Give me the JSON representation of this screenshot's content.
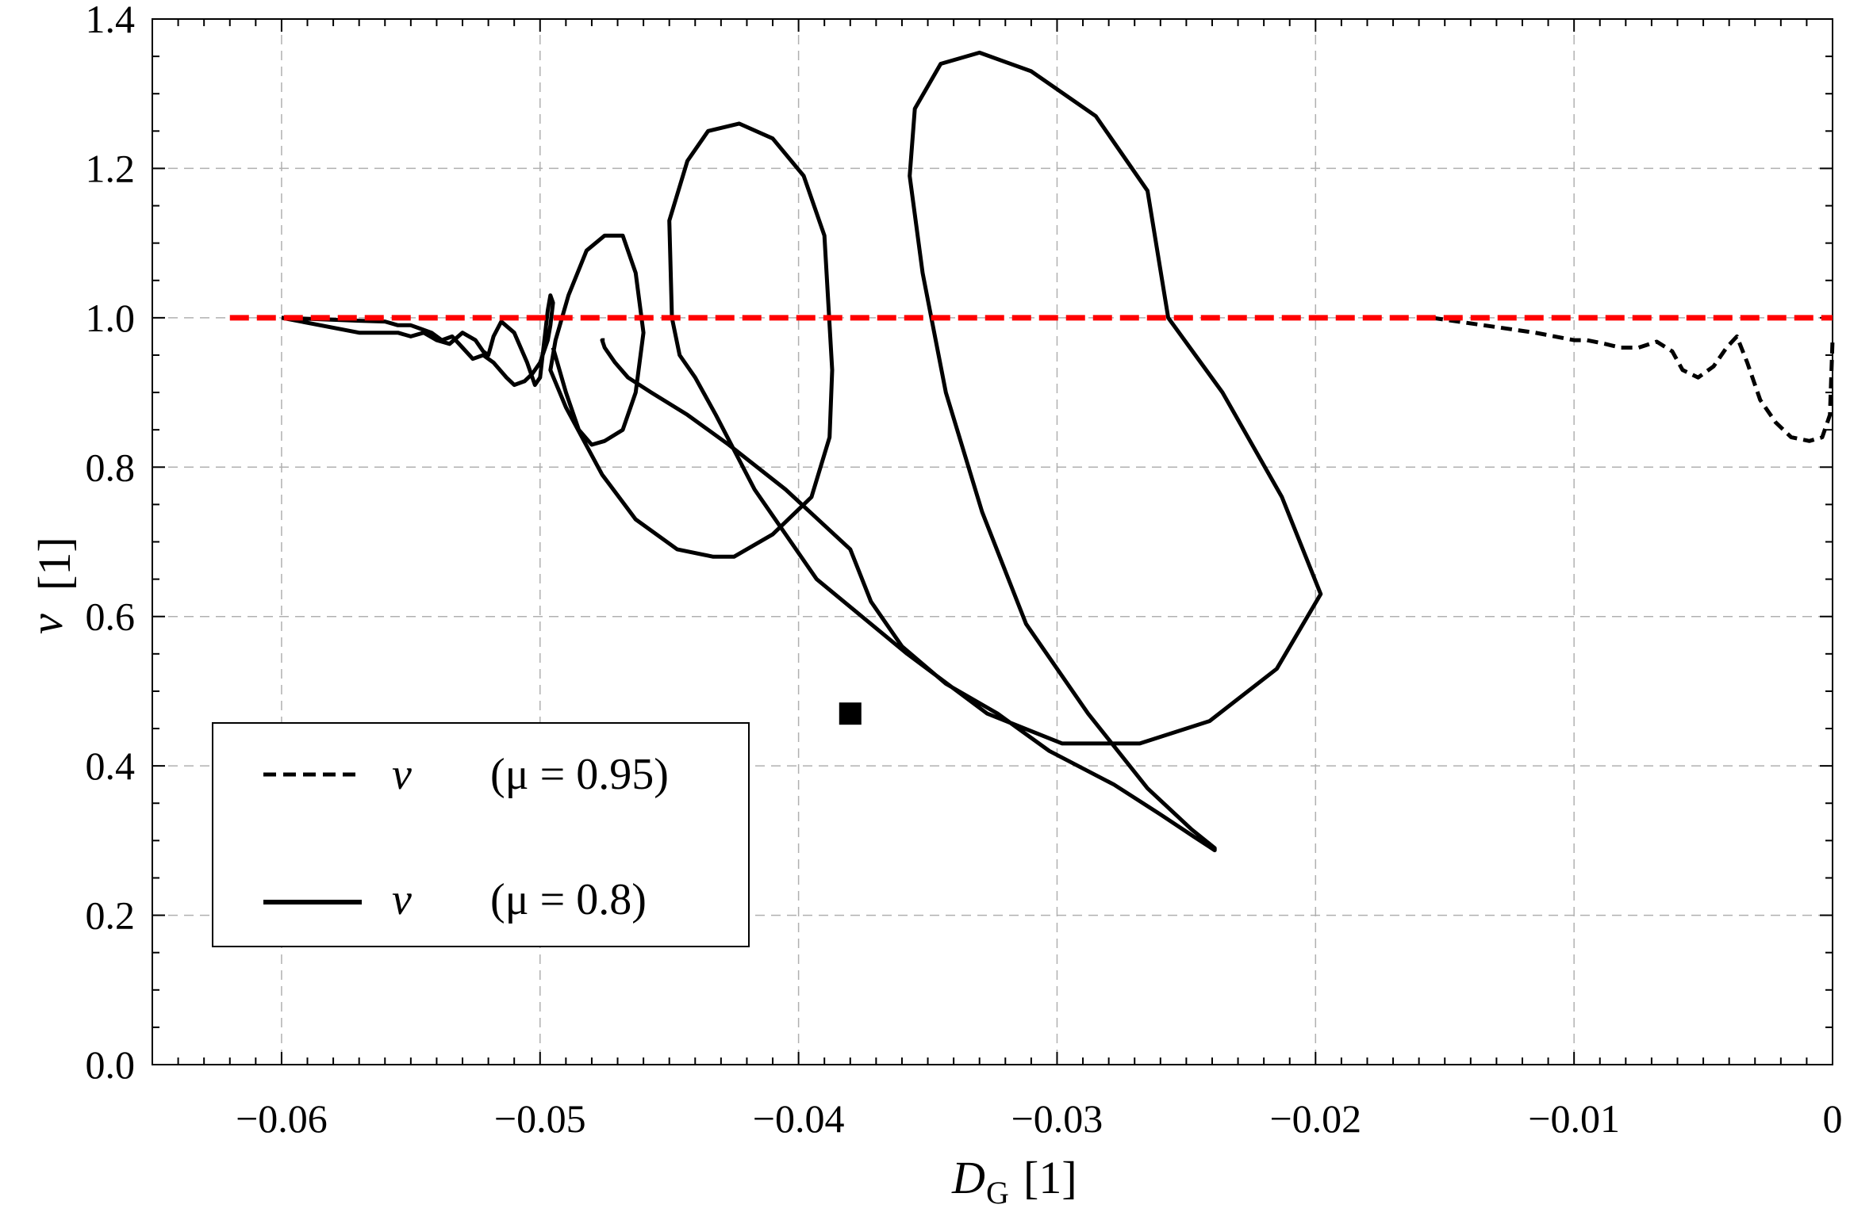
{
  "chart_data": {
    "type": "line",
    "title": "",
    "xlabel": "D",
    "xlabel_sub": "G",
    "xlabel_unit": "[1]",
    "ylabel": "ν",
    "ylabel_unit": "[1]",
    "xlim": [
      -0.065,
      0.0
    ],
    "ylim": [
      0.0,
      1.4
    ],
    "x_ticks": [
      -0.06,
      -0.05,
      -0.04,
      -0.03,
      -0.02,
      -0.01,
      0
    ],
    "x_tick_labels": [
      "−0.06",
      "−0.05",
      "−0.04",
      "−0.03",
      "−0.02",
      "−0.01",
      "0"
    ],
    "y_ticks": [
      0.0,
      0.2,
      0.4,
      0.6,
      0.8,
      1.0,
      1.2,
      1.4
    ],
    "y_tick_labels": [
      "0.0",
      "0.2",
      "0.4",
      "0.6",
      "0.8",
      "1.0",
      "1.2",
      "1.4"
    ],
    "grid": true,
    "legend_position": "bottom-left",
    "series": [
      {
        "name": "ν (μ = 0.95)",
        "legend_symbol": "ν",
        "legend_param": "(μ = 0.95)",
        "style": "dashed",
        "color": "#000000",
        "x": [
          -0.0155,
          -0.0135,
          -0.0115,
          -0.01,
          -0.0095,
          -0.0088,
          -0.0082,
          -0.0075,
          -0.0068,
          -0.0062,
          -0.0058,
          -0.0052,
          -0.0046,
          -0.0041,
          -0.0037,
          -0.0033,
          -0.0028,
          -0.0022,
          -0.0016,
          -0.0009,
          -0.0004,
          -0.0001,
          0.0
        ],
        "y": [
          1.0,
          0.99,
          0.98,
          0.97,
          0.97,
          0.965,
          0.96,
          0.96,
          0.968,
          0.955,
          0.93,
          0.92,
          0.935,
          0.96,
          0.975,
          0.94,
          0.89,
          0.86,
          0.84,
          0.835,
          0.84,
          0.87,
          0.97
        ]
      },
      {
        "name": "ν (μ = 0.8)",
        "legend_symbol": "ν",
        "legend_param": "(μ = 0.8)",
        "style": "solid",
        "color": "#000000",
        "x": [
          -0.06,
          -0.057,
          -0.0555,
          -0.055,
          -0.0545,
          -0.054,
          -0.0535,
          -0.053,
          -0.0525,
          -0.0522,
          -0.052,
          -0.0518,
          -0.0515,
          -0.051,
          -0.0505,
          -0.0502,
          -0.05,
          -0.0499,
          -0.0498,
          -0.0497,
          -0.0496,
          -0.0495,
          -0.0496,
          -0.0497,
          -0.0498,
          -0.0499,
          -0.05,
          -0.0503,
          -0.0506,
          -0.051,
          -0.0513,
          -0.0518,
          -0.0522,
          -0.0526,
          -0.053,
          -0.0534,
          -0.0538,
          -0.0542,
          -0.0546,
          -0.055,
          -0.0555,
          -0.056,
          -0.057,
          -0.0585,
          -0.06
        ],
        "y": [
          1.0,
          0.98,
          0.98,
          0.975,
          0.98,
          0.97,
          0.965,
          0.98,
          0.97,
          0.955,
          0.95,
          0.975,
          0.995,
          0.98,
          0.94,
          0.91,
          0.92,
          0.95,
          0.98,
          1.01,
          1.03,
          1.02,
          0.99,
          0.97,
          0.96,
          0.95,
          0.94,
          0.925,
          0.915,
          0.91,
          0.92,
          0.94,
          0.95,
          0.945,
          0.96,
          0.975,
          0.97,
          0.98,
          0.985,
          0.99,
          0.99,
          0.995,
          0.996,
          0.998,
          1.0
        ]
      }
    ],
    "mu08_main_path": {
      "x": [
        -0.0495,
        -0.049,
        -0.0485,
        -0.048,
        -0.0475,
        -0.0468,
        -0.0463,
        -0.046,
        -0.0463,
        -0.0468,
        -0.0475,
        -0.0482,
        -0.0489,
        -0.0494,
        -0.0496,
        -0.049,
        -0.0476,
        -0.0463,
        -0.0447,
        -0.0433,
        -0.0425,
        -0.041,
        -0.0395,
        -0.0388,
        -0.0387,
        -0.039,
        -0.0398,
        -0.041,
        -0.0423,
        -0.0435,
        -0.0443,
        -0.045,
        -0.0449,
        -0.0446,
        -0.044,
        -0.0432,
        -0.0417,
        -0.0393,
        -0.0358,
        -0.0327,
        -0.0298,
        -0.0268,
        -0.0241,
        -0.0215,
        -0.0198,
        -0.0213,
        -0.0236,
        -0.0257,
        -0.0265,
        -0.0285,
        -0.031,
        -0.033,
        -0.0345,
        -0.0355,
        -0.0357,
        -0.0352,
        -0.0343,
        -0.0329,
        -0.0312,
        -0.0288,
        -0.0265,
        -0.0248,
        -0.0239,
        -0.0239,
        -0.0247,
        -0.026,
        -0.0278,
        -0.0303,
        -0.0323,
        -0.0343,
        -0.036,
        -0.0372,
        -0.038,
        -0.0405,
        -0.0427,
        -0.0443,
        -0.0457,
        -0.0466,
        -0.0471,
        -0.0475,
        -0.0476,
        -0.0475
      ],
      "y": [
        0.96,
        0.9,
        0.85,
        0.83,
        0.835,
        0.85,
        0.9,
        0.98,
        1.06,
        1.11,
        1.11,
        1.09,
        1.03,
        0.97,
        0.93,
        0.88,
        0.79,
        0.73,
        0.69,
        0.68,
        0.68,
        0.71,
        0.76,
        0.84,
        0.93,
        1.11,
        1.19,
        1.24,
        1.26,
        1.25,
        1.21,
        1.13,
        1.0,
        0.95,
        0.92,
        0.87,
        0.77,
        0.65,
        0.55,
        0.47,
        0.43,
        0.43,
        0.46,
        0.53,
        0.63,
        0.76,
        0.9,
        1.0,
        1.17,
        1.27,
        1.33,
        1.355,
        1.34,
        1.28,
        1.19,
        1.06,
        0.9,
        0.74,
        0.59,
        0.47,
        0.37,
        0.315,
        0.29,
        0.287,
        0.305,
        0.335,
        0.375,
        0.42,
        0.47,
        0.51,
        0.56,
        0.62,
        0.69,
        0.77,
        0.83,
        0.87,
        0.9,
        0.92,
        0.94,
        0.96,
        0.97,
        0.97
      ]
    },
    "reference_line": {
      "y": 1.0,
      "x_from": -0.062,
      "x_to": 0.0,
      "color": "#ff0000",
      "style": "dashed"
    },
    "marker": {
      "x": -0.038,
      "y": 0.47,
      "shape": "square",
      "color": "#000000"
    }
  }
}
